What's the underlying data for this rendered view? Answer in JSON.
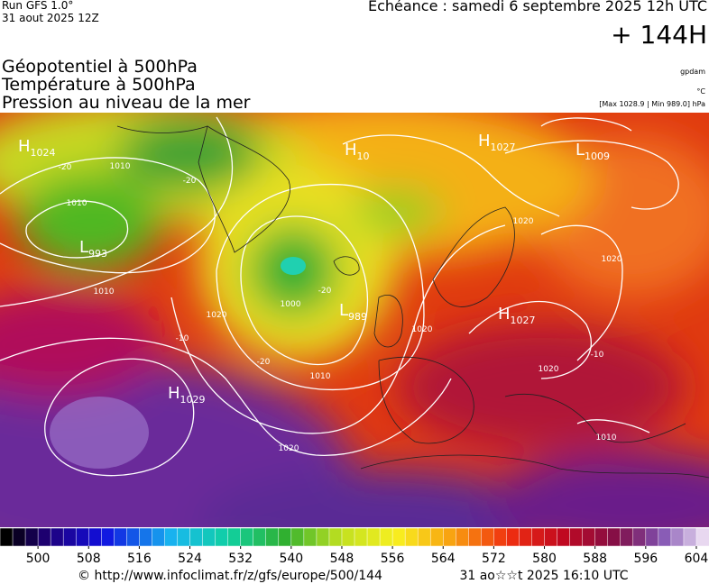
{
  "header": {
    "run": "Run GFS 1.0°",
    "run_date": "31 aout 2025 12Z",
    "valid": "Echéance : samedi 6 septembre 2025 12h UTC",
    "lead": "+ 144H",
    "title_lines": [
      "Géopotentiel à 500hPa",
      "Température à 500hPa",
      "Pression au niveau de la mer"
    ],
    "units": [
      "gpdam",
      "°C"
    ],
    "range": "[Max 1028.9 | Min 989.0] hPa"
  },
  "centers": [
    {
      "kind": "H",
      "value": 1024
    },
    {
      "kind": "L",
      "value": 993
    },
    {
      "kind": "H",
      "value": 10
    },
    {
      "kind": "H",
      "value": 1027
    },
    {
      "kind": "L",
      "value": 1009
    },
    {
      "kind": "L",
      "value": 989
    },
    {
      "kind": "H",
      "value": 1027
    },
    {
      "kind": "H",
      "value": 1029
    }
  ],
  "isobar_labels": [
    "1010",
    "1010",
    "1010",
    "1020",
    "1020",
    "1000",
    "1010",
    "1020",
    "1020",
    "1020",
    "1020",
    "1010",
    "-20",
    "-20",
    "-20",
    "-20",
    "-10",
    "-10"
  ],
  "colorbar": {
    "lim": [
      494,
      606
    ],
    "ticks": [
      500,
      508,
      516,
      524,
      532,
      540,
      548,
      556,
      564,
      572,
      580,
      588,
      596,
      604
    ]
  },
  "footer": {
    "source": "© http://www.infoclimat.fr/z/gfs/europe/500/144",
    "created": "31 ao☆☆t 2025 16:10 UTC"
  }
}
